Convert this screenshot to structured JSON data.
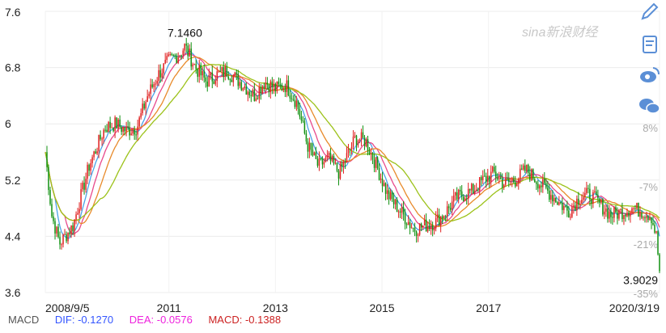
{
  "watermark": "sina新浪财经",
  "chart_data": {
    "type": "candlestick",
    "y_ticks": [
      "7.6",
      "6.8",
      "6",
      "5.2",
      "4.4",
      "3.6"
    ],
    "y_values": [
      7.6,
      6.8,
      6.0,
      5.2,
      4.4,
      3.6
    ],
    "ylim": [
      3.6,
      7.6
    ],
    "right_ticks": [
      "8%",
      "-7%",
      "-21%",
      "-35%"
    ],
    "x_tick_labels": [
      "2008/9/5",
      "2011",
      "2013",
      "2015",
      "2017",
      "2020/3/19"
    ],
    "x_tick_years": [
      2008.68,
      2011.0,
      2013.0,
      2015.0,
      2017.0,
      2020.21
    ],
    "xlim": [
      2008.68,
      2020.21
    ],
    "annotations": [
      {
        "text": "7.1460",
        "date": 2011.3,
        "value": 7.146
      },
      {
        "text": "3.9029",
        "date": 2020.21,
        "value": 3.9029
      }
    ],
    "close_series": [
      [
        2008.68,
        5.6
      ],
      [
        2008.8,
        4.7
      ],
      [
        2008.95,
        4.3
      ],
      [
        2009.2,
        4.55
      ],
      [
        2009.5,
        5.4
      ],
      [
        2009.8,
        5.95
      ],
      [
        2010.0,
        6.0
      ],
      [
        2010.2,
        5.9
      ],
      [
        2010.4,
        5.95
      ],
      [
        2010.6,
        6.4
      ],
      [
        2010.8,
        6.7
      ],
      [
        2011.0,
        6.9
      ],
      [
        2011.2,
        7.0
      ],
      [
        2011.3,
        7.1
      ],
      [
        2011.5,
        6.8
      ],
      [
        2011.7,
        6.6
      ],
      [
        2011.9,
        6.7
      ],
      [
        2012.1,
        6.75
      ],
      [
        2012.4,
        6.55
      ],
      [
        2012.6,
        6.4
      ],
      [
        2012.8,
        6.6
      ],
      [
        2013.0,
        6.5
      ],
      [
        2013.2,
        6.55
      ],
      [
        2013.4,
        6.3
      ],
      [
        2013.6,
        5.7
      ],
      [
        2013.8,
        5.4
      ],
      [
        2014.0,
        5.5
      ],
      [
        2014.2,
        5.3
      ],
      [
        2014.5,
        5.8
      ],
      [
        2014.7,
        5.75
      ],
      [
        2014.9,
        5.4
      ],
      [
        2015.1,
        5.0
      ],
      [
        2015.3,
        4.8
      ],
      [
        2015.6,
        4.5
      ],
      [
        2015.8,
        4.55
      ],
      [
        2016.0,
        4.6
      ],
      [
        2016.2,
        4.75
      ],
      [
        2016.4,
        4.95
      ],
      [
        2016.7,
        5.05
      ],
      [
        2016.9,
        5.2
      ],
      [
        2017.1,
        5.3
      ],
      [
        2017.3,
        5.15
      ],
      [
        2017.5,
        5.2
      ],
      [
        2017.7,
        5.35
      ],
      [
        2017.9,
        5.2
      ],
      [
        2018.1,
        5.05
      ],
      [
        2018.3,
        4.9
      ],
      [
        2018.5,
        4.75
      ],
      [
        2018.7,
        4.95
      ],
      [
        2018.9,
        5.0
      ],
      [
        2019.1,
        4.85
      ],
      [
        2019.3,
        4.7
      ],
      [
        2019.5,
        4.75
      ],
      [
        2019.7,
        4.8
      ],
      [
        2019.9,
        4.75
      ],
      [
        2020.05,
        4.7
      ],
      [
        2020.15,
        4.4
      ],
      [
        2020.21,
        3.9
      ]
    ],
    "moving_average_colors": [
      "#4aa3e8",
      "#e84a8c",
      "#e88a2a",
      "#9cc21a"
    ],
    "up_color": "#e02020",
    "down_color": "#109010"
  },
  "legend": {
    "macd_label": "MACD",
    "dif": "DIF: -0.1270",
    "dea": "DEA: -0.0576",
    "macd": "MACD: -0.1388",
    "dif_color": "#3355ff",
    "dea_color": "#ee22dd",
    "macd_color": "#cc2222"
  },
  "side_icons": [
    "pencil-icon",
    "note-icon",
    "weibo-icon",
    "wechat-icon"
  ]
}
